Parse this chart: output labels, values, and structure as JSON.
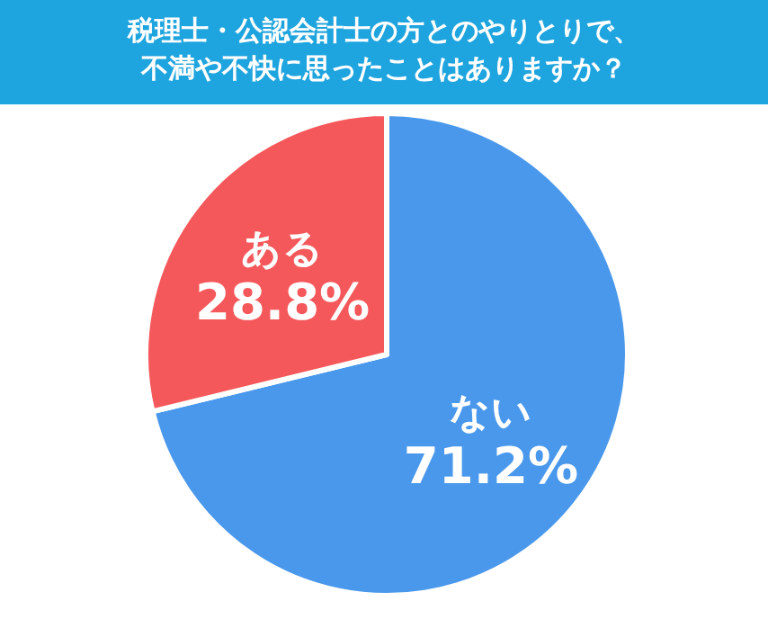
{
  "chart_data": {
    "type": "pie",
    "title": "税理士・公認会計士の方とのやりとりで、不満や不快に思ったことはありますか？",
    "categories": [
      "ない",
      "ある"
    ],
    "values": [
      71.2,
      28.8
    ],
    "colors": [
      "#4a98ec",
      "#f5585a"
    ],
    "value_labels": [
      "71.2%",
      "28.8%"
    ],
    "legend": false
  }
}
